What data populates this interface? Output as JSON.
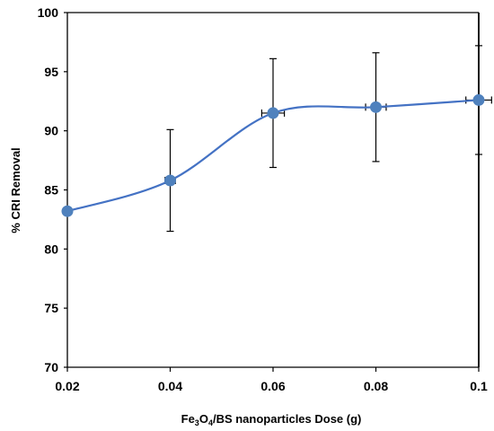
{
  "chart_data": {
    "type": "scatter",
    "smooth_line": true,
    "title": "",
    "xlabel": {
      "prefix": "Fe",
      "sub1": "3",
      "mid": "O",
      "sub2": "4",
      "suffix": "/BS nanoparticles  Dose (g)"
    },
    "ylabel": "% CRI Removal",
    "xlim": [
      0.02,
      0.1
    ],
    "ylim": [
      70,
      100
    ],
    "x_ticks": [
      "0.02",
      "0.04",
      "0.06",
      "0.08",
      "0.1"
    ],
    "y_ticks": [
      "70",
      "75",
      "80",
      "85",
      "90",
      "95",
      "100"
    ],
    "grid": false,
    "legend": "none",
    "series": [
      {
        "x": [
          0.02,
          0.04,
          0.06,
          0.08,
          0.1
        ],
        "y": [
          83.2,
          85.8,
          91.5,
          92.0,
          92.6
        ],
        "y_err": [
          0,
          4.3,
          4.6,
          4.6,
          4.6
        ],
        "x_err": [
          0,
          0.001,
          0.0022,
          0.002,
          0.0025
        ]
      }
    ],
    "colors": {
      "line": "#4472C4",
      "marker": "#4F81BD",
      "axis": "#000000",
      "errorbar": "#000000"
    }
  }
}
